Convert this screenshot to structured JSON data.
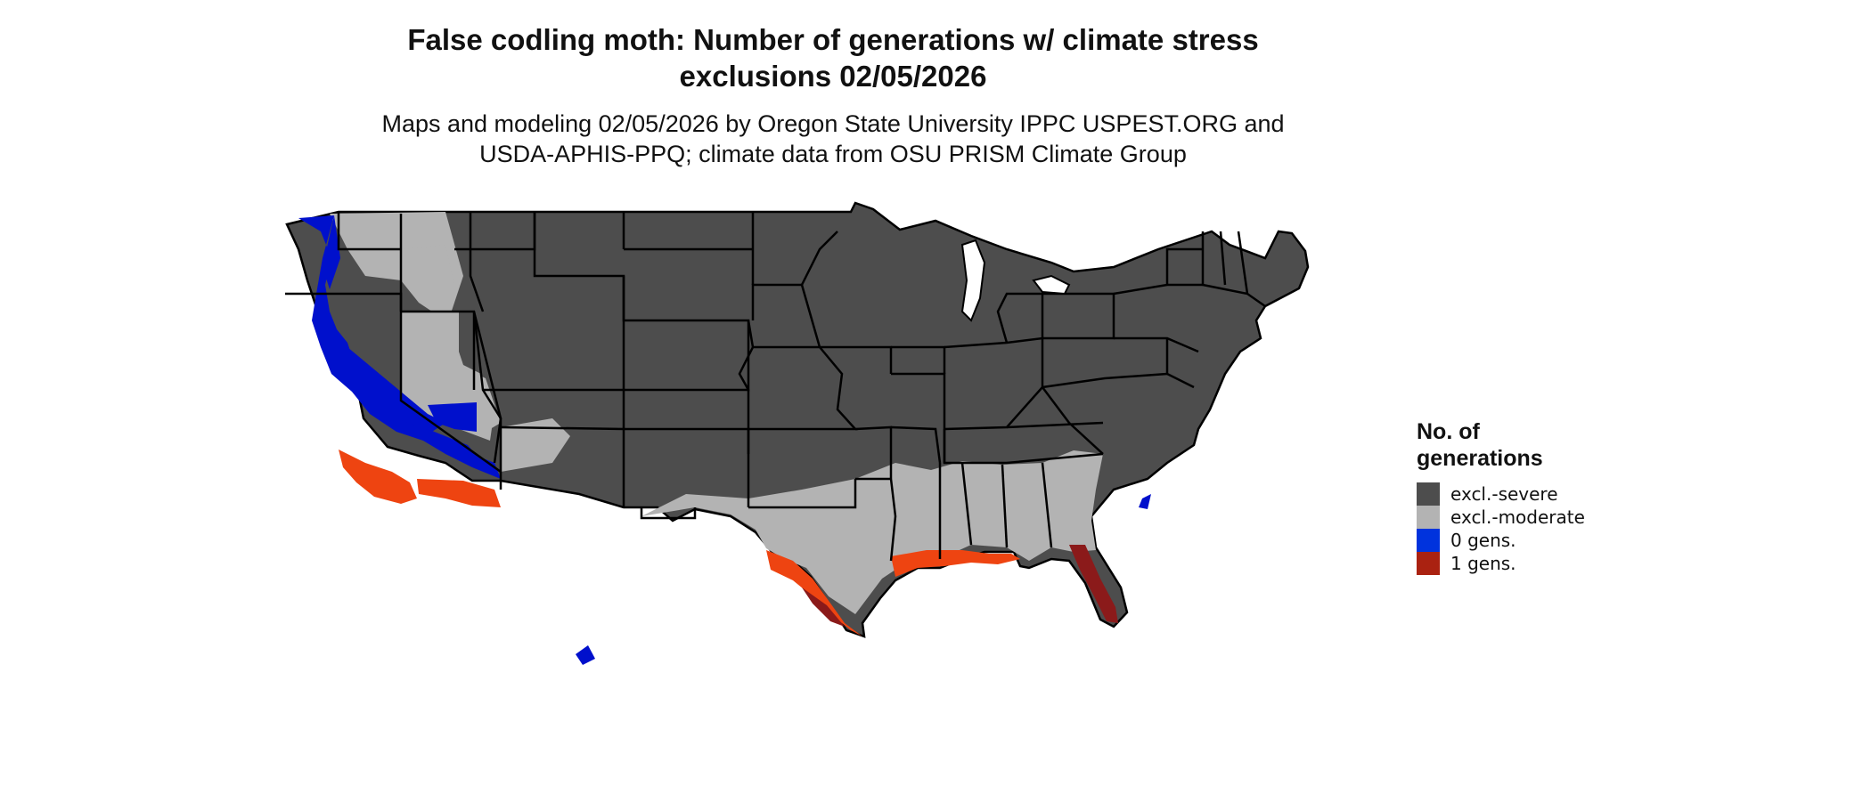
{
  "title": {
    "line1": "False codling moth: Number of generations w/ climate stress",
    "line2": "exclusions 02/05/2026"
  },
  "subtitle": {
    "line1": "Maps and modeling 02/05/2026 by Oregon State University IPPC USPEST.ORG and",
    "line2": "USDA-APHIS-PPQ; climate data from OSU PRISM Climate Group"
  },
  "legend": {
    "title_line1": "No. of",
    "title_line2": "generations",
    "items": [
      {
        "label": "excl.-severe",
        "color": "#4d4d4d"
      },
      {
        "label": "excl.-moderate",
        "color": "#b3b3b3"
      },
      {
        "label": "0 gens.",
        "color": "#0033dd"
      },
      {
        "label": "1 gens.",
        "color": "#aa2211"
      }
    ]
  },
  "colors": {
    "severe": "#4d4d4d",
    "moderate": "#b3b3b3",
    "zero_gens": "#0010cc",
    "one_gens_orange": "#ee4411",
    "one_gens_dark": "#8b1a1a",
    "border": "#000000"
  }
}
